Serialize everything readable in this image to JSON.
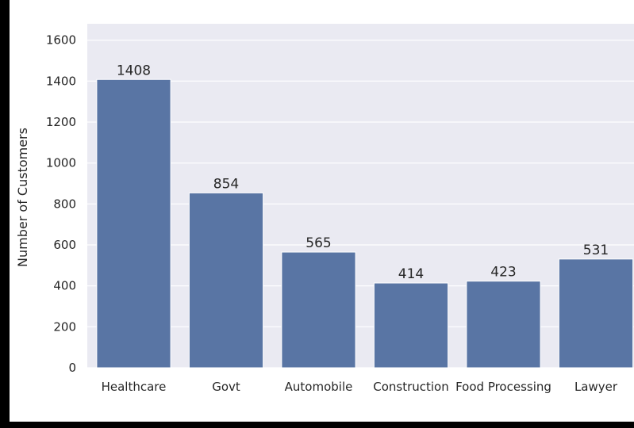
{
  "chart_data": {
    "type": "bar",
    "title": "",
    "xlabel": "",
    "ylabel": "Number of Customers",
    "categories": [
      "Healthcare",
      "Govt",
      "Automobile",
      "Construction",
      "Food Processing",
      "Lawyer"
    ],
    "values": [
      1408,
      854,
      565,
      414,
      423,
      531
    ],
    "data_labels": [
      "1408",
      "854",
      "565",
      "414",
      "423",
      "531"
    ],
    "y_ticks": [
      0,
      200,
      400,
      600,
      800,
      1000,
      1200,
      1400,
      1600
    ],
    "ylim": [
      0,
      1680
    ],
    "grid": true,
    "style": {
      "background": "#eaeaf2",
      "bar_color": "#5975a4",
      "grid_color": "#ffffff",
      "text_color": "#262626"
    }
  }
}
